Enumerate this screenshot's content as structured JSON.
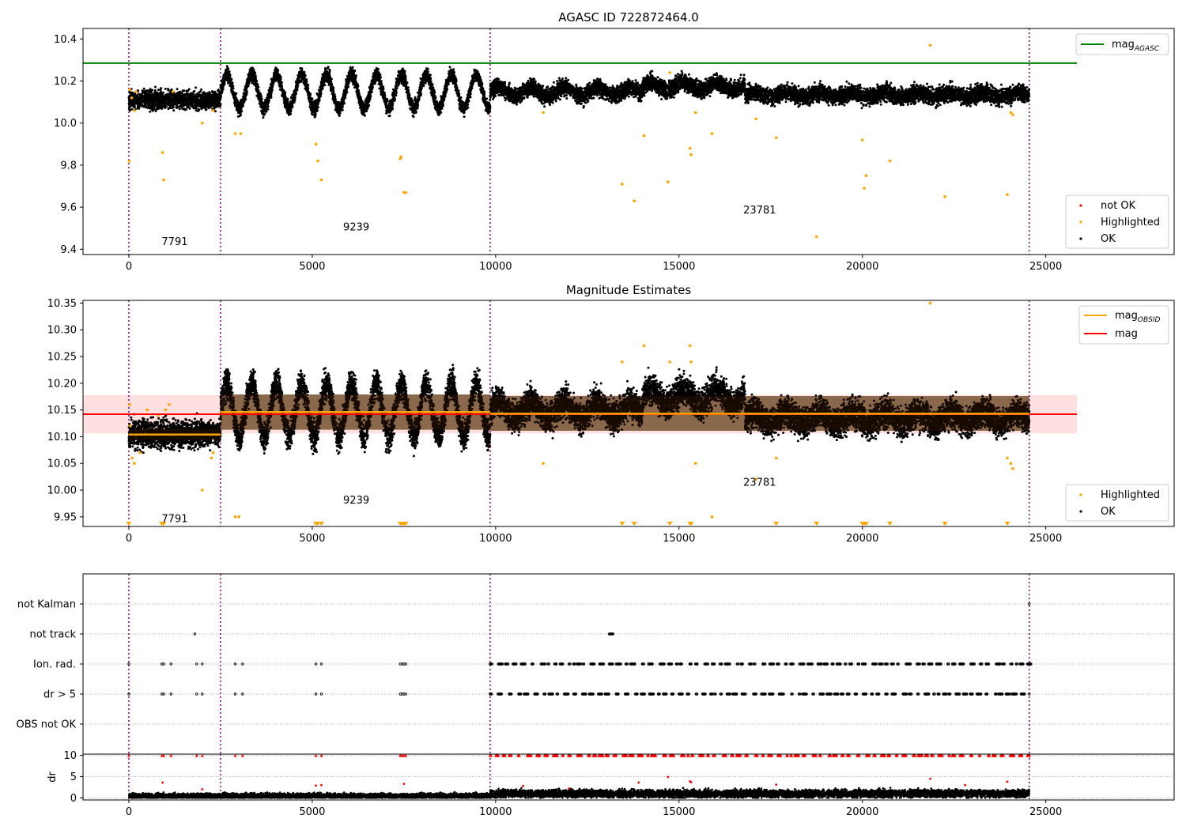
{
  "chart_data": [
    {
      "type": "scatter",
      "title": "AGASC ID 722872464.0",
      "xlabel": "",
      "ylabel": "",
      "xlim": [
        -1250,
        28500
      ],
      "ylim": [
        9.375,
        10.45
      ],
      "xticks": [
        0,
        5000,
        10000,
        15000,
        20000,
        25000
      ],
      "xtick_labels": [
        "0",
        "5000",
        "10000",
        "15000",
        "20000",
        "25000"
      ],
      "yticks": [
        9.4,
        9.6,
        9.8,
        10.0,
        10.2,
        10.4
      ],
      "ytick_labels": [
        "9.4",
        "9.6",
        "9.8",
        "10.0",
        "10.2",
        "10.4"
      ],
      "obsid_boundaries": [
        0,
        2500,
        9850,
        24550
      ],
      "obsid_labels": [
        {
          "text": "7791",
          "x": 1250,
          "y": 9.42
        },
        {
          "text": "9239",
          "x": 6200,
          "y": 9.49
        },
        {
          "text": "23781",
          "x": 17200,
          "y": 9.57
        }
      ],
      "reference_lines": [
        {
          "name": "mag_AGASC",
          "y": 10.285,
          "x_range": [
            -1250,
            25850
          ],
          "color": "#008000"
        }
      ],
      "ok_segments": [
        {
          "x": [
            0,
            2500
          ],
          "center": 10.11,
          "spread": 0.03,
          "osc_amp": 0,
          "osc_period": 0
        },
        {
          "x": [
            2500,
            9850
          ],
          "center": 10.15,
          "spread": 0.03,
          "osc_amp": 0.08,
          "osc_period": 680
        },
        {
          "x": [
            9850,
            14000
          ],
          "center": 10.15,
          "spread": 0.035,
          "osc_amp": 0.02,
          "osc_period": 900
        },
        {
          "x": [
            14000,
            16800
          ],
          "center": 10.175,
          "spread": 0.035,
          "osc_amp": 0.02,
          "osc_period": 900
        },
        {
          "x": [
            16800,
            24550
          ],
          "center": 10.135,
          "spread": 0.035,
          "osc_amp": 0.01,
          "osc_period": 900
        }
      ],
      "highlighted_points": {
        "x": [
          10,
          30,
          80,
          150,
          200,
          920,
          950,
          1200,
          2000,
          2300,
          2900,
          3050,
          5100,
          5150,
          5250,
          7400,
          7420,
          7500,
          7550,
          11300,
          13450,
          13780,
          14050,
          14700,
          14750,
          15300,
          15330,
          15450,
          15900,
          17100,
          17650,
          18750,
          20000,
          20050,
          20100,
          20750,
          21850,
          22250,
          23950,
          24050,
          24100
        ],
        "y": [
          9.82,
          10.16,
          10.12,
          10.06,
          10.15,
          9.86,
          9.73,
          10.15,
          10.0,
          10.06,
          9.95,
          9.95,
          9.9,
          9.82,
          9.73,
          9.83,
          9.84,
          9.67,
          9.67,
          10.05,
          9.71,
          9.63,
          9.94,
          9.72,
          10.24,
          9.88,
          9.85,
          10.05,
          9.95,
          10.02,
          9.93,
          9.46,
          9.92,
          9.69,
          9.75,
          9.82,
          10.37,
          9.65,
          9.66,
          10.05,
          10.04
        ]
      },
      "not_ok_points": {
        "x": [],
        "y": []
      },
      "legends": [
        {
          "position": "top-right",
          "entries": [
            {
              "label": "mag",
              "sub": "AGASC",
              "kind": "line",
              "color": "#008000"
            }
          ]
        },
        {
          "position": "lower-right",
          "entries": [
            {
              "label": "not OK",
              "kind": "marker",
              "color": "#ff0000"
            },
            {
              "label": "Highlighted",
              "kind": "marker",
              "color": "#ffa500"
            },
            {
              "label": "OK",
              "kind": "marker",
              "color": "#000000"
            }
          ]
        }
      ]
    },
    {
      "type": "scatter",
      "title": "Magnitude Estimates",
      "xlabel": "",
      "ylabel": "",
      "xlim": [
        -1250,
        28500
      ],
      "ylim": [
        9.932,
        10.355
      ],
      "xticks": [
        0,
        5000,
        10000,
        15000,
        20000,
        25000
      ],
      "xtick_labels": [
        "0",
        "5000",
        "10000",
        "15000",
        "20000",
        "25000"
      ],
      "yticks": [
        9.95,
        10.0,
        10.05,
        10.1,
        10.15,
        10.2,
        10.25,
        10.3,
        10.35
      ],
      "ytick_labels": [
        "9.95",
        "10.00",
        "10.05",
        "10.10",
        "10.15",
        "10.20",
        "10.25",
        "10.30",
        "10.35"
      ],
      "obsid_boundaries": [
        0,
        2500,
        9850,
        24550
      ],
      "obsid_labels": [
        {
          "text": "7791",
          "x": 1250,
          "y": 9.94
        },
        {
          "text": "9239",
          "x": 6200,
          "y": 9.975
        },
        {
          "text": "23781",
          "x": 17200,
          "y": 10.008
        }
      ],
      "mag": {
        "value": 10.142,
        "band": [
          10.106,
          10.178
        ],
        "x_range": [
          -1250,
          25850
        ],
        "color": "#ff0000"
      },
      "mag_obsid": [
        {
          "x": [
            0,
            2500
          ],
          "value": 10.104,
          "band": [
            10.094,
            10.114
          ]
        },
        {
          "x": [
            2500,
            9850
          ],
          "value": 10.146,
          "band": [
            10.113,
            10.179
          ]
        },
        {
          "x": [
            9850,
            24550
          ],
          "value": 10.143,
          "band": [
            10.111,
            10.176
          ]
        }
      ],
      "ok_segments": [
        {
          "x": [
            0,
            2500
          ],
          "center": 10.105,
          "spread": 0.018,
          "osc_amp": 0,
          "osc_period": 0
        },
        {
          "x": [
            2500,
            9850
          ],
          "center": 10.15,
          "spread": 0.025,
          "osc_amp": 0.05,
          "osc_period": 680
        },
        {
          "x": [
            9850,
            14000
          ],
          "center": 10.15,
          "spread": 0.025,
          "osc_amp": 0.015,
          "osc_period": 900
        },
        {
          "x": [
            14000,
            16800
          ],
          "center": 10.175,
          "spread": 0.025,
          "osc_amp": 0.015,
          "osc_period": 900
        },
        {
          "x": [
            16800,
            24550
          ],
          "center": 10.135,
          "spread": 0.025,
          "osc_amp": 0.01,
          "osc_period": 900
        }
      ],
      "highlighted_points": {
        "x": [
          20,
          40,
          90,
          150,
          300,
          500,
          800,
          1000,
          1100,
          2000,
          2250,
          2300,
          2900,
          3000,
          11300,
          13450,
          14050,
          14750,
          15300,
          15330,
          15450,
          15900,
          17100,
          17650,
          21850,
          23950,
          24050,
          24100
        ],
        "y": [
          10.16,
          10.12,
          10.06,
          10.05,
          10.07,
          10.15,
          10.14,
          10.15,
          10.16,
          10.0,
          10.06,
          10.07,
          9.95,
          9.95,
          10.05,
          10.24,
          10.27,
          10.24,
          10.27,
          10.24,
          10.05,
          9.95,
          10.02,
          10.06,
          10.35,
          10.06,
          10.05,
          10.04
        ]
      },
      "clipped_low_x": [
        0,
        900,
        950,
        5100,
        5150,
        5250,
        7400,
        7450,
        7500,
        7550,
        13450,
        13780,
        14750,
        15300,
        15330,
        17650,
        18750,
        20000,
        20050,
        20100,
        20750,
        22250,
        23950
      ],
      "legends": [
        {
          "position": "top-right",
          "entries": [
            {
              "label": "mag",
              "sub": "OBSID",
              "kind": "line",
              "color": "#ffa500"
            },
            {
              "label": "mag",
              "sub": "",
              "kind": "line",
              "color": "#ff0000"
            }
          ]
        },
        {
          "position": "lower-right",
          "entries": [
            {
              "label": "Highlighted",
              "kind": "marker",
              "color": "#ffa500"
            },
            {
              "label": "OK",
              "kind": "marker",
              "color": "#000000"
            }
          ]
        }
      ]
    },
    {
      "type": "scatter",
      "title": "",
      "xlabel": "",
      "ylabel": "",
      "xlim": [
        -1250,
        28500
      ],
      "categories": [
        "not Kalman",
        "not track",
        "Ion. rad.",
        "dr > 5",
        "OBS not OK"
      ],
      "obsid_boundaries": [
        0,
        2500,
        9850,
        24550
      ],
      "flags": {
        "not Kalman": [
          24550
        ],
        "not track": [
          1800,
          13100,
          13120,
          13140,
          13160,
          13180,
          13200
        ],
        "Ion. rad.": [
          0,
          900,
          950,
          1150,
          1850,
          2000,
          2900,
          3100,
          5100,
          5250,
          7400,
          7450,
          7500,
          7550,
          24550
        ],
        "dr > 5": [
          0,
          900,
          950,
          1150,
          1850,
          2000,
          2900,
          3100,
          5100,
          5250,
          7400,
          7450,
          7500,
          7550,
          24550
        ],
        "OBS not OK": []
      },
      "flag_bursts_after_x": 9850
    },
    {
      "type": "scatter",
      "title": "",
      "xlabel": "",
      "ylabel": "dr",
      "xlim": [
        -1250,
        28500
      ],
      "ylim": [
        -0.5,
        10.3
      ],
      "yticks": [
        0,
        5,
        10
      ],
      "ytick_labels": [
        "0",
        "5",
        "10"
      ],
      "obsid_boundaries": [
        0,
        2500,
        9850,
        24550
      ],
      "dr_clip": 10,
      "ok_segments": [
        {
          "x": [
            0,
            9850
          ],
          "center": 0.45,
          "spread": 0.3
        },
        {
          "x": [
            9850,
            24550
          ],
          "center": 1.0,
          "spread": 0.45
        }
      ],
      "clipped_points": {
        "x": [
          0,
          900,
          950,
          1150,
          1850,
          2000,
          2900,
          3100,
          5100,
          5250,
          7400,
          7450,
          7500,
          7550
        ],
        "bursts_after_x": 9850
      },
      "outlier_points": {
        "x": [
          920,
          2000,
          5100,
          5250,
          7500,
          10750,
          12000,
          13900,
          14700,
          15300,
          15330,
          17650,
          21850,
          22800,
          23950
        ],
        "y": [
          3.6,
          2.0,
          2.9,
          3.0,
          3.3,
          2.8,
          2.2,
          3.6,
          4.9,
          3.9,
          3.7,
          3.1,
          4.5,
          3.0,
          3.8
        ]
      }
    }
  ]
}
